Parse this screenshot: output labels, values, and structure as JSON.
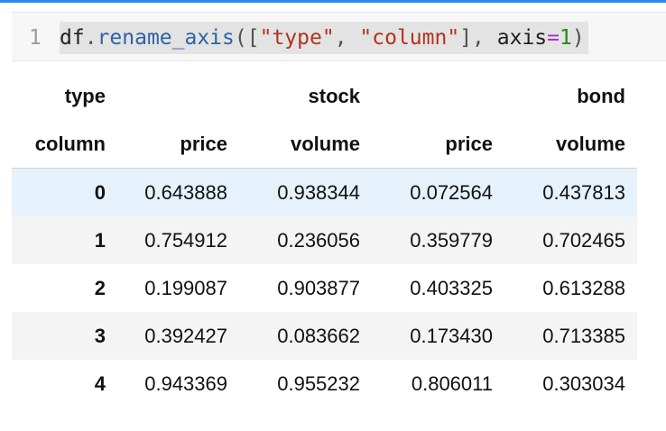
{
  "code_cell": {
    "line_number": "1",
    "tokens": {
      "obj": "df",
      "dot": ".",
      "fn": "rename_axis",
      "open": "(",
      "lbr": "[",
      "s1": "\"type\"",
      "comma1": ", ",
      "s2": "\"column\"",
      "rbr": "]",
      "comma2": ", ",
      "kw": "axis",
      "eq": "=",
      "num": "1",
      "close": ")"
    }
  },
  "dataframe": {
    "header_row1": {
      "index_label": "type",
      "groups": [
        "stock",
        "bond"
      ]
    },
    "header_row2": {
      "index_label": "column",
      "columns": [
        "price",
        "volume",
        "price",
        "volume"
      ]
    },
    "rows": [
      {
        "index": "0",
        "values": [
          "0.643888",
          "0.938344",
          "0.072564",
          "0.437813"
        ]
      },
      {
        "index": "1",
        "values": [
          "0.754912",
          "0.236056",
          "0.359779",
          "0.702465"
        ]
      },
      {
        "index": "2",
        "values": [
          "0.199087",
          "0.903877",
          "0.403325",
          "0.613288"
        ]
      },
      {
        "index": "3",
        "values": [
          "0.392427",
          "0.083662",
          "0.173430",
          "0.713385"
        ]
      },
      {
        "index": "4",
        "values": [
          "0.943369",
          "0.955232",
          "0.806011",
          "0.303034"
        ]
      }
    ]
  },
  "colors": {
    "accent": "#2a88e4",
    "hover_row": "#e5f2fc",
    "stripe_row": "#f4f4f4",
    "code_bg": "#f7f7f7"
  }
}
